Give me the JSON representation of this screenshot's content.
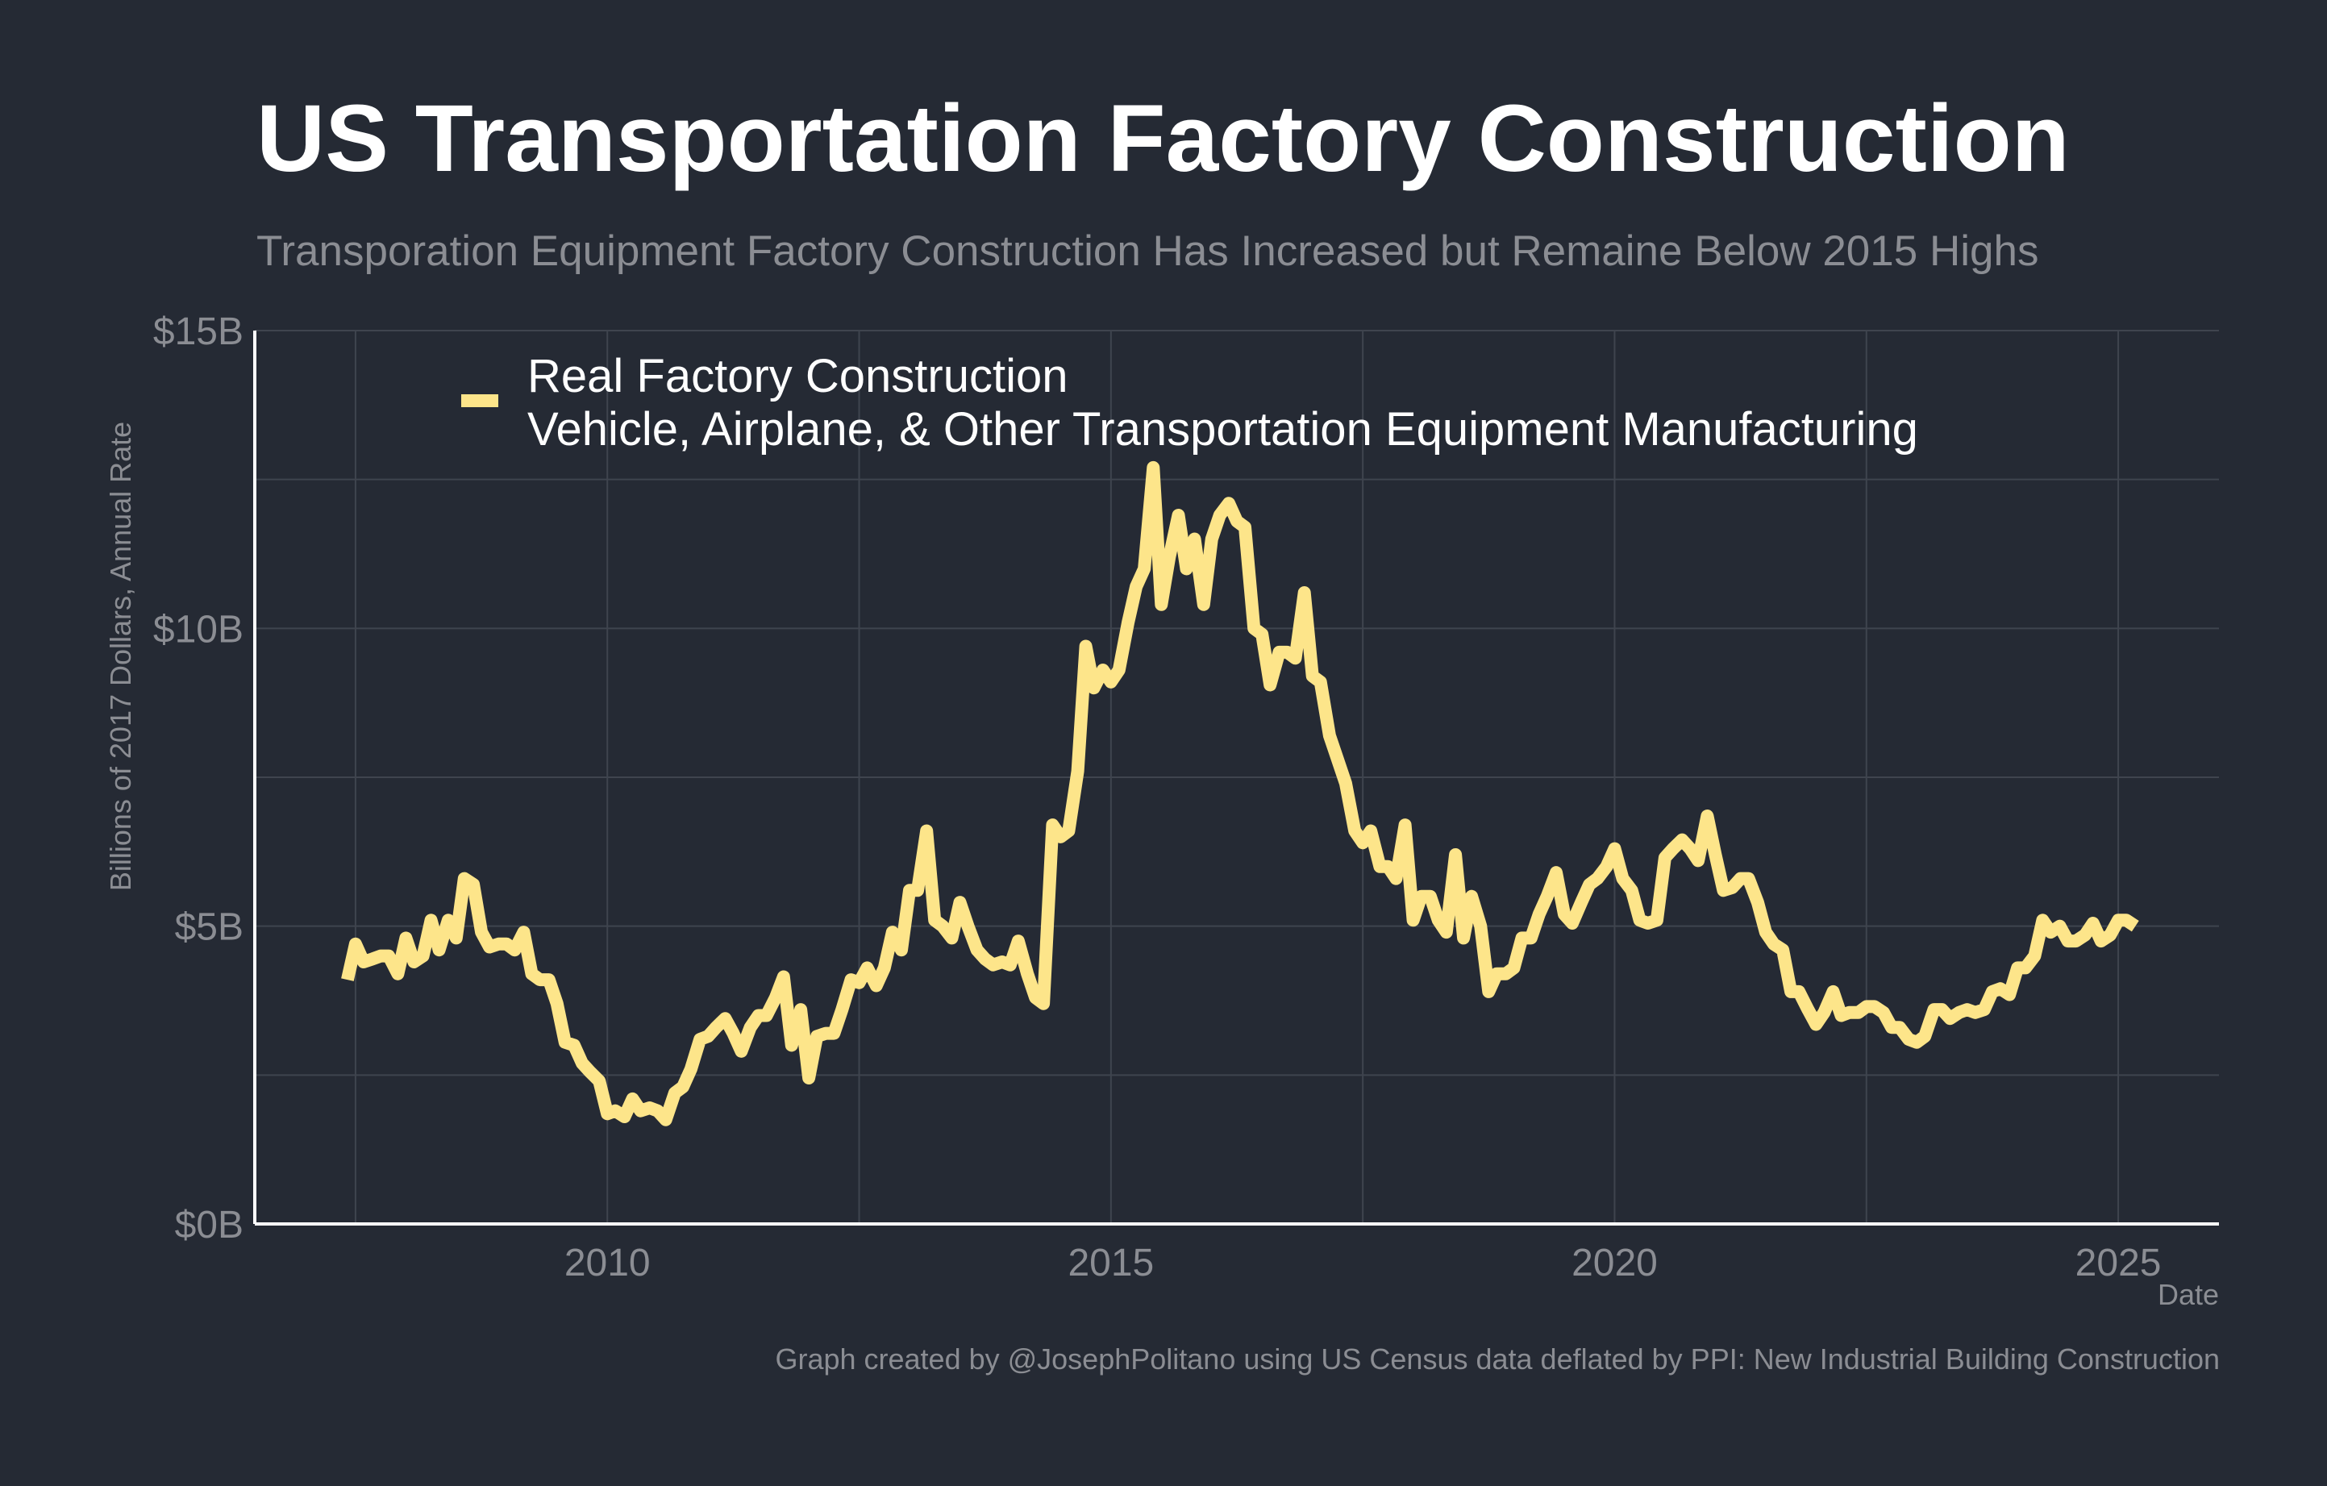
{
  "header": {
    "title": "US Transportation Factory Construction",
    "subtitle": "Transporation Equipment Factory Construction Has Increased but Remaine Below 2015 Highs"
  },
  "footer": {
    "caption": "Graph created by @JosephPolitano using US Census data deflated by PPI: New Industrial Building Construction"
  },
  "colors": {
    "background": "#252a34",
    "series": "#fde58a",
    "grid": "#3f444e",
    "axis": "#ffffff",
    "tick_text": "#8b8d93"
  },
  "chart_data": {
    "type": "line",
    "xlabel": "Date",
    "ylabel": "Billions of 2017 Dollars, Annual Rate",
    "xlim": [
      2006.5,
      2026.0
    ],
    "ylim": [
      0,
      15
    ],
    "x_ticks": [
      2010,
      2015,
      2020,
      2025
    ],
    "y_ticks": [
      0,
      5,
      10,
      15
    ],
    "y_tick_labels": [
      "$0B",
      "$5B",
      "$10B",
      "$15B"
    ],
    "grid": true,
    "legend": {
      "placement": "top-left",
      "label_line1": "Real Factory Construction",
      "label_line2": "Vehicle, Airplane, & Other Transportation Equipment Manufacturing"
    },
    "series": [
      {
        "name": "Real Factory Construction\nVehicle, Airplane, & Other Transportation Equipment Manufacturing",
        "x": [
          2007.42,
          2007.5,
          2007.58,
          2007.67,
          2007.75,
          2007.83,
          2007.92,
          2008.0,
          2008.08,
          2008.17,
          2008.25,
          2008.33,
          2008.42,
          2008.5,
          2008.58,
          2008.67,
          2008.75,
          2008.83,
          2008.92,
          2009.0,
          2009.08,
          2009.17,
          2009.25,
          2009.33,
          2009.42,
          2009.5,
          2009.58,
          2009.67,
          2009.75,
          2009.83,
          2009.92,
          2010.0,
          2010.08,
          2010.17,
          2010.25,
          2010.33,
          2010.42,
          2010.5,
          2010.58,
          2010.67,
          2010.75,
          2010.83,
          2010.92,
          2011.0,
          2011.08,
          2011.17,
          2011.25,
          2011.33,
          2011.42,
          2011.5,
          2011.58,
          2011.67,
          2011.75,
          2011.83,
          2011.92,
          2012.0,
          2012.08,
          2012.17,
          2012.25,
          2012.33,
          2012.42,
          2012.5,
          2012.58,
          2012.67,
          2012.75,
          2012.83,
          2012.92,
          2013.0,
          2013.08,
          2013.17,
          2013.25,
          2013.33,
          2013.42,
          2013.5,
          2013.58,
          2013.67,
          2013.75,
          2013.83,
          2013.92,
          2014.0,
          2014.08,
          2014.17,
          2014.25,
          2014.33,
          2014.42,
          2014.5,
          2014.58,
          2014.67,
          2014.75,
          2014.83,
          2014.92,
          2015.0,
          2015.08,
          2015.17,
          2015.25,
          2015.33,
          2015.42,
          2015.5,
          2015.58,
          2015.67,
          2015.75,
          2015.83,
          2015.92,
          2016.0,
          2016.08,
          2016.17,
          2016.25,
          2016.33,
          2016.42,
          2016.5,
          2016.58,
          2016.67,
          2016.75,
          2016.83,
          2016.92,
          2017.0,
          2017.08,
          2017.17,
          2017.25,
          2017.33,
          2017.42,
          2017.5,
          2017.58,
          2017.67,
          2017.75,
          2017.83,
          2017.92,
          2018.0,
          2018.08,
          2018.17,
          2018.25,
          2018.33,
          2018.42,
          2018.5,
          2018.58,
          2018.67,
          2018.75,
          2018.83,
          2018.92,
          2019.0,
          2019.08,
          2019.17,
          2019.25,
          2019.33,
          2019.42,
          2019.5,
          2019.58,
          2019.67,
          2019.75,
          2019.83,
          2019.92,
          2020.0,
          2020.08,
          2020.17,
          2020.25,
          2020.33,
          2020.42,
          2020.5,
          2020.58,
          2020.67,
          2020.75,
          2020.83,
          2020.92,
          2021.0,
          2021.08,
          2021.17,
          2021.25,
          2021.33,
          2021.42,
          2021.5,
          2021.58,
          2021.67,
          2021.75,
          2021.83,
          2021.92,
          2022.0,
          2022.08,
          2022.17,
          2022.25,
          2022.33,
          2022.42,
          2022.5,
          2022.58,
          2022.67,
          2022.75,
          2022.83,
          2022.92,
          2023.0,
          2023.08,
          2023.17,
          2023.25,
          2023.33,
          2023.42,
          2023.5,
          2023.58,
          2023.67,
          2023.75,
          2023.83,
          2023.92,
          2024.0,
          2024.08,
          2024.17,
          2024.25,
          2024.33,
          2024.42,
          2024.5,
          2024.58,
          2024.67,
          2024.75,
          2024.83,
          2024.92,
          2025.0,
          2025.08,
          2025.17
        ],
        "y": [
          4.1,
          4.7,
          4.4,
          4.45,
          4.5,
          4.5,
          4.2,
          4.8,
          4.4,
          4.5,
          5.1,
          4.6,
          5.1,
          4.8,
          5.8,
          5.7,
          4.9,
          4.65,
          4.7,
          4.7,
          4.6,
          4.9,
          4.2,
          4.1,
          4.1,
          3.7,
          3.05,
          3.0,
          2.7,
          2.55,
          2.4,
          1.85,
          1.9,
          1.8,
          2.1,
          1.9,
          1.95,
          1.9,
          1.75,
          2.2,
          2.3,
          2.6,
          3.1,
          3.15,
          3.3,
          3.45,
          3.2,
          2.9,
          3.3,
          3.5,
          3.5,
          3.8,
          4.15,
          3.0,
          3.6,
          2.45,
          3.15,
          3.2,
          3.2,
          3.6,
          4.1,
          4.05,
          4.3,
          4.0,
          4.3,
          4.9,
          4.6,
          5.6,
          5.6,
          6.6,
          5.1,
          5.0,
          4.8,
          5.4,
          5.0,
          4.6,
          4.45,
          4.35,
          4.4,
          4.35,
          4.75,
          4.2,
          3.8,
          3.7,
          6.7,
          6.5,
          6.6,
          7.6,
          9.7,
          9.0,
          9.3,
          9.1,
          9.3,
          10.1,
          10.7,
          11.0,
          12.7,
          10.4,
          11.2,
          11.9,
          11.0,
          11.5,
          10.4,
          11.5,
          11.9,
          12.1,
          11.8,
          11.7,
          10.0,
          9.9,
          9.05,
          9.6,
          9.6,
          9.5,
          10.6,
          9.2,
          9.1,
          8.2,
          7.8,
          7.4,
          6.6,
          6.4,
          6.6,
          6.0,
          6.0,
          5.8,
          6.7,
          5.1,
          5.5,
          5.5,
          5.1,
          4.9,
          6.2,
          4.8,
          5.5,
          5.0,
          3.9,
          4.2,
          4.2,
          4.3,
          4.8,
          4.8,
          5.2,
          5.5,
          5.9,
          5.2,
          5.05,
          5.4,
          5.7,
          5.8,
          6.0,
          6.3,
          5.8,
          5.6,
          5.1,
          5.05,
          5.1,
          6.15,
          6.3,
          6.45,
          6.3,
          6.1,
          6.85,
          6.2,
          5.6,
          5.65,
          5.8,
          5.8,
          5.4,
          4.9,
          4.7,
          4.6,
          3.9,
          3.9,
          3.6,
          3.35,
          3.55,
          3.9,
          3.5,
          3.55,
          3.55,
          3.65,
          3.65,
          3.55,
          3.3,
          3.3,
          3.1,
          3.05,
          3.15,
          3.6,
          3.6,
          3.45,
          3.55,
          3.6,
          3.55,
          3.6,
          3.9,
          3.95,
          3.85,
          4.3,
          4.3,
          4.5,
          5.1,
          4.9,
          5.0,
          4.75,
          4.75,
          4.85,
          5.05,
          4.75,
          4.85,
          5.1,
          5.1,
          5.0
        ]
      }
    ]
  }
}
